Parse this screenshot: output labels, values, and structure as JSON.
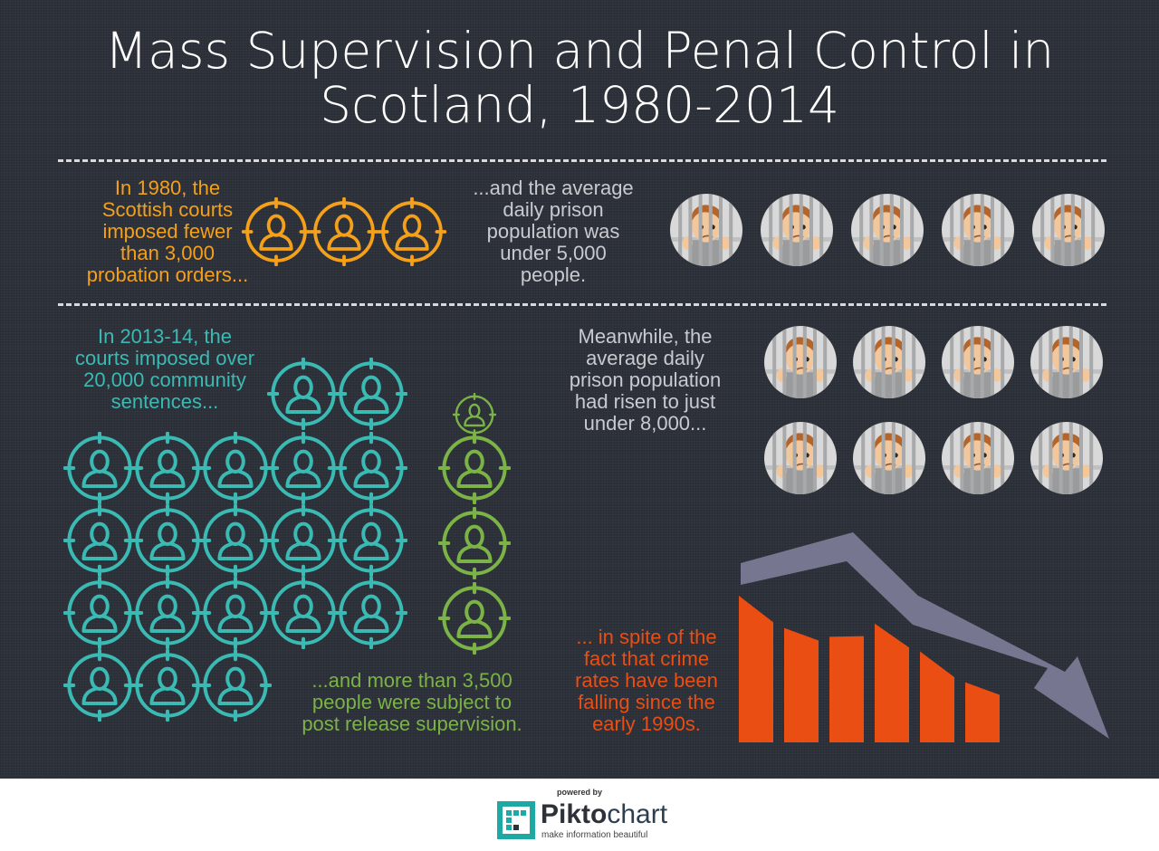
{
  "title": {
    "line1": "Mass Supervision and Penal Control in",
    "line2": "Scotland, 1980-2014"
  },
  "section_1980": {
    "probation_text": [
      "In 1980, the",
      "Scottish courts",
      "imposed fewer",
      "than  3,000",
      "probation orders..."
    ],
    "prison_text": [
      "...and the average",
      "daily prison",
      "population was",
      "under 5,000",
      "people."
    ],
    "probation_icon_count": 3,
    "prisoner_icon_count": 5
  },
  "section_2014": {
    "community_text": [
      "In 2013-14, the",
      "courts imposed over",
      "20,000 community",
      "sentences..."
    ],
    "prison_text": [
      "Meanwhile, the",
      "average daily",
      "prison population",
      "had risen to just",
      "under 8,000..."
    ],
    "supervision_text": [
      "...and more than 3,500",
      "people were subject to",
      "post release supervision."
    ],
    "crime_text": [
      "... in spite of the",
      "fact that crime",
      "rates have been",
      "falling since the",
      "early 1990s."
    ],
    "community_icon_count": 20,
    "supervision_icon_count": 3.5,
    "prisoner_icon_count": 8,
    "crime_bar_levels": [
      1.0,
      0.78,
      0.72,
      0.81,
      0.62,
      0.41
    ]
  },
  "colors": {
    "background": "#2d3139",
    "probation": "#f5a01a",
    "community": "#3bbab4",
    "supervision": "#7bb347",
    "crime": "#ea4e12",
    "arrow": "#7a7993",
    "text_grey": "#c8cacf"
  },
  "icons": {
    "person": "person-target-icon",
    "prisoner": "prisoner-behind-bars-icon",
    "trend": "downward-arrow-icon"
  },
  "footer": {
    "powered_by": "powered by",
    "brand_pikto": "Pikto",
    "brand_chart": "chart",
    "tagline": "make information beautiful"
  }
}
